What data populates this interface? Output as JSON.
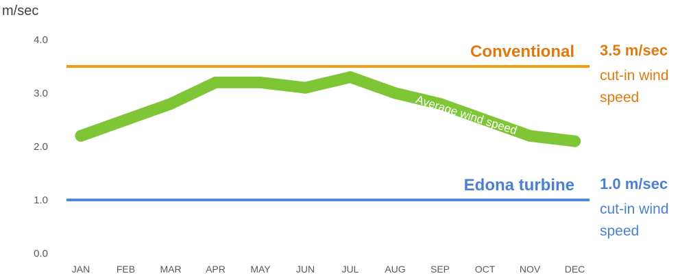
{
  "chart_data": {
    "type": "line",
    "ylabel": "m/sec",
    "ylim": [
      0,
      4
    ],
    "yticks": [
      "0.0",
      "1.0",
      "2.0",
      "3.0",
      "4.0"
    ],
    "categories": [
      "JAN",
      "FEB",
      "MAR",
      "APR",
      "MAY",
      "JUN",
      "JUL",
      "AUG",
      "SEP",
      "OCT",
      "NOV",
      "DEC"
    ],
    "series": [
      {
        "name": "Average wind speed",
        "values": [
          2.2,
          2.5,
          2.8,
          3.2,
          3.2,
          3.1,
          3.3,
          3.0,
          2.8,
          2.5,
          2.2,
          2.1
        ],
        "color": "#7ec636"
      }
    ],
    "reference_lines": [
      {
        "name": "Conventional",
        "value": 3.5,
        "value_label": "3.5 m/sec",
        "note_line1": "cut-in wind",
        "note_line2": "speed",
        "color": "#f29b11",
        "text_color": "#e07a10"
      },
      {
        "name": "Edona turbine",
        "value": 1.0,
        "value_label": "1.0 m/sec",
        "note_line1": "cut-in wind",
        "note_line2": "speed",
        "color": "#4f86db",
        "text_color": "#4a7fd4"
      }
    ],
    "grid": false,
    "legend": "none"
  }
}
